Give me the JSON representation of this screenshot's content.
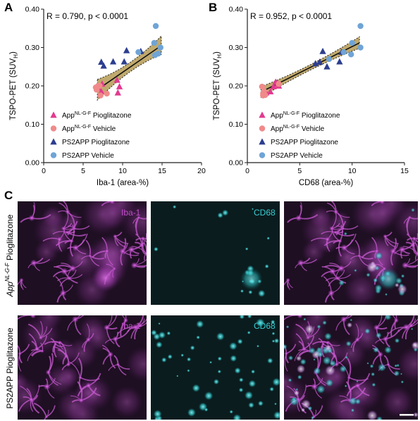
{
  "panels": {
    "A": "A",
    "B": "B",
    "C": "C"
  },
  "colors": {
    "pink_triangle": "#e23a8f",
    "salmon_circle": "#f08a8a",
    "navy_triangle": "#2c3e8f",
    "blue_circle": "#6fa4d6",
    "band_fill": "#b59a54",
    "iba1_magenta": "#c04dc9",
    "cd68_cyan": "#36cfd3"
  },
  "legend": [
    {
      "base": "App",
      "sup": "NL-G-F",
      "rest": " Pioglitazone",
      "marker": "triangle",
      "color": "#e23a8f"
    },
    {
      "base": "App",
      "sup": "NL-G-F",
      "rest": " Vehicle",
      "marker": "circle",
      "color": "#f08a8a"
    },
    {
      "base": "PS2APP Pioglitazone",
      "sup": "",
      "rest": "",
      "marker": "triangle",
      "color": "#2c3e8f"
    },
    {
      "base": "PS2APP Vehicle",
      "sup": "",
      "rest": "",
      "marker": "circle",
      "color": "#6fa4d6"
    }
  ],
  "chart_data": [
    {
      "type": "scatter",
      "panel": "A",
      "annotation": "R = 0.790, p < 0.0001",
      "xlabel": "Iba-1 (area-%)",
      "ylabel_main": "TSPO-PET (SUV",
      "ylabel_sub": "H",
      "ylabel_end": ")",
      "xlim": [
        0,
        20
      ],
      "ylim": [
        0,
        0.4
      ],
      "xticks": [
        "0",
        "5",
        "10",
        "15",
        "20"
      ],
      "yticks": [
        "0.00",
        "0.10",
        "0.20",
        "0.30",
        "0.40"
      ],
      "regression": {
        "x": [
          6.8,
          14.9
        ],
        "y": [
          0.19,
          0.305
        ],
        "band_low_start": 0.163,
        "band_high_start": 0.217,
        "band_low_end": 0.282,
        "band_high_end": 0.33
      },
      "series": [
        {
          "name": "App NL-G-F Pioglitazone",
          "marker": "triangle",
          "color": "#e23a8f",
          "points": [
            [
              7.4,
              0.205
            ],
            [
              9.3,
              0.215
            ],
            [
              9.6,
              0.198
            ],
            [
              9.4,
              0.182
            ],
            [
              7.3,
              0.185
            ],
            [
              6.9,
              0.195
            ]
          ]
        },
        {
          "name": "App NL-G-F Vehicle",
          "marker": "circle",
          "color": "#f08a8a",
          "points": [
            [
              6.6,
              0.196
            ],
            [
              7.1,
              0.2
            ],
            [
              8.0,
              0.18
            ],
            [
              7.2,
              0.175
            ],
            [
              6.7,
              0.19
            ],
            [
              6.9,
              0.2
            ]
          ]
        },
        {
          "name": "PS2APP Pioglitazone",
          "marker": "triangle",
          "color": "#2c3e8f",
          "points": [
            [
              7.3,
              0.262
            ],
            [
              7.6,
              0.252
            ],
            [
              8.8,
              0.263
            ],
            [
              10.5,
              0.292
            ],
            [
              10.2,
              0.263
            ],
            [
              12.3,
              0.29
            ]
          ]
        },
        {
          "name": "PS2APP Vehicle",
          "marker": "circle",
          "color": "#6fa4d6",
          "points": [
            [
              14.2,
              0.356
            ],
            [
              14.0,
              0.312
            ],
            [
              14.8,
              0.3
            ],
            [
              14.5,
              0.284
            ],
            [
              14.1,
              0.28
            ],
            [
              12.0,
              0.288
            ]
          ]
        }
      ]
    },
    {
      "type": "scatter",
      "panel": "B",
      "annotation": "R = 0.952, p < 0.0001",
      "xlabel": "CD68 (area-%)",
      "ylabel_main": "TSPO-PET (SUV",
      "ylabel_sub": "H",
      "ylabel_end": ")",
      "xlim": [
        0,
        15
      ],
      "ylim": [
        0,
        0.4
      ],
      "xticks": [
        "0",
        "5",
        "10",
        "15"
      ],
      "yticks": [
        "0.00",
        "0.10",
        "0.20",
        "0.30",
        "0.40"
      ],
      "regression": {
        "x": [
          1.3,
          10.7
        ],
        "y": [
          0.184,
          0.312
        ],
        "band_low_start": 0.17,
        "band_high_start": 0.198,
        "band_low_end": 0.298,
        "band_high_end": 0.328
      },
      "series": [
        {
          "name": "App NL-G-F Pioglitazone",
          "marker": "triangle",
          "color": "#e23a8f",
          "points": [
            [
              2.7,
              0.21
            ],
            [
              2.9,
              0.205
            ],
            [
              3.0,
              0.2
            ],
            [
              2.2,
              0.185
            ],
            [
              1.8,
              0.182
            ],
            [
              2.5,
              0.198
            ]
          ]
        },
        {
          "name": "App NL-G-F Vehicle",
          "marker": "circle",
          "color": "#f08a8a",
          "points": [
            [
              1.4,
              0.198
            ],
            [
              1.5,
              0.18
            ],
            [
              1.7,
              0.176
            ],
            [
              1.6,
              0.186
            ],
            [
              3.0,
              0.205
            ],
            [
              1.5,
              0.175
            ]
          ]
        },
        {
          "name": "PS2APP Pioglitazone",
          "marker": "triangle",
          "color": "#2c3e8f",
          "points": [
            [
              6.9,
              0.262
            ],
            [
              7.2,
              0.29
            ],
            [
              7.6,
              0.25
            ],
            [
              8.8,
              0.263
            ],
            [
              9.0,
              0.288
            ],
            [
              6.5,
              0.258
            ]
          ]
        },
        {
          "name": "PS2APP Vehicle",
          "marker": "circle",
          "color": "#6fa4d6",
          "points": [
            [
              10.8,
              0.356
            ],
            [
              10.0,
              0.312
            ],
            [
              10.8,
              0.3
            ],
            [
              9.9,
              0.282
            ],
            [
              9.2,
              0.288
            ],
            [
              7.8,
              0.27
            ]
          ]
        }
      ]
    }
  ],
  "micrographs": {
    "rows": [
      {
        "label_base": "App",
        "label_sup": "NL-G-F",
        "label_rest": " Pioglitazone"
      },
      {
        "label_base": "PS2APP Pioglitazone",
        "label_sup": "",
        "label_rest": ""
      }
    ],
    "channel_labels": [
      "Iba-1",
      "CD68",
      ""
    ]
  }
}
